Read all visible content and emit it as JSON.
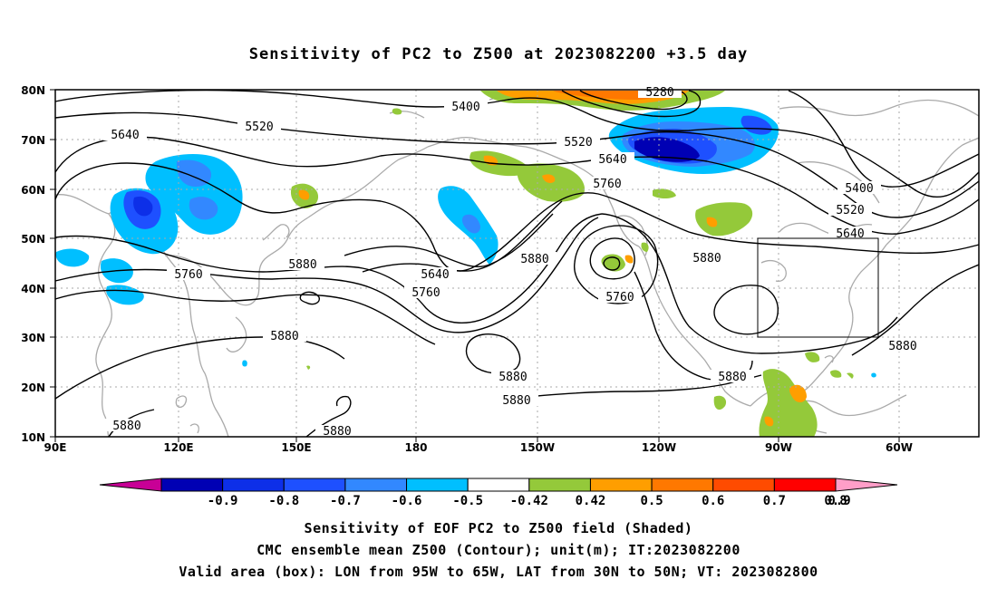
{
  "title": "Sensitivity of PC2 to Z500 at 2023082200 +3.5 day",
  "axes": {
    "lon_labels": [
      "90E",
      "120E",
      "150E",
      "180",
      "150W",
      "120W",
      "90W",
      "60W"
    ],
    "lat_labels": [
      "80N",
      "70N",
      "60N",
      "50N",
      "40N",
      "30N",
      "20N",
      "10N"
    ]
  },
  "contour_labels": {
    "c5280": "5280",
    "c5400a": "5400",
    "c5400b": "5400",
    "c5520a": "5520",
    "c5520b": "5520",
    "c5520c": "5520",
    "c5640a": "5640",
    "c5640b": "5640",
    "c5640c": "5640",
    "c5640d": "5640",
    "c5760a": "5760",
    "c5760b": "5760",
    "c5760c": "5760",
    "c5760d": "5760",
    "c5880a": "5880",
    "c5880b": "5880",
    "c5880c": "5880",
    "c5880d": "5880",
    "c5880e": "5880",
    "c5880f": "5880",
    "c5880g": "5880",
    "c5880h": "5880",
    "c5880i": "5880"
  },
  "colorbar": {
    "colors": [
      "#0000b4",
      "#0d2fe8",
      "#1e50ff",
      "#3288ff",
      "#00bfff",
      "#ffffff",
      "#94c93a",
      "#ff9e00",
      "#ff7800",
      "#ff4b00",
      "#ff0000"
    ],
    "low_color": "#c80096",
    "high_color": "#ff9ec8",
    "labels": [
      "-0.9",
      "-0.8",
      "-0.7",
      "-0.6",
      "-0.5",
      "-0.42",
      "0.42",
      "0.5",
      "0.6",
      "0.7",
      "0.8",
      "0.9"
    ]
  },
  "captions": {
    "line1": "Sensitivity of EOF PC2 to Z500 field (Shaded)",
    "line2": "CMC ensemble mean Z500 (Contour); unit(m); IT:2023082200",
    "line3": "Valid area (box): LON from 95W to 65W, LAT from 30N to 50N; VT: 2023082800"
  }
}
